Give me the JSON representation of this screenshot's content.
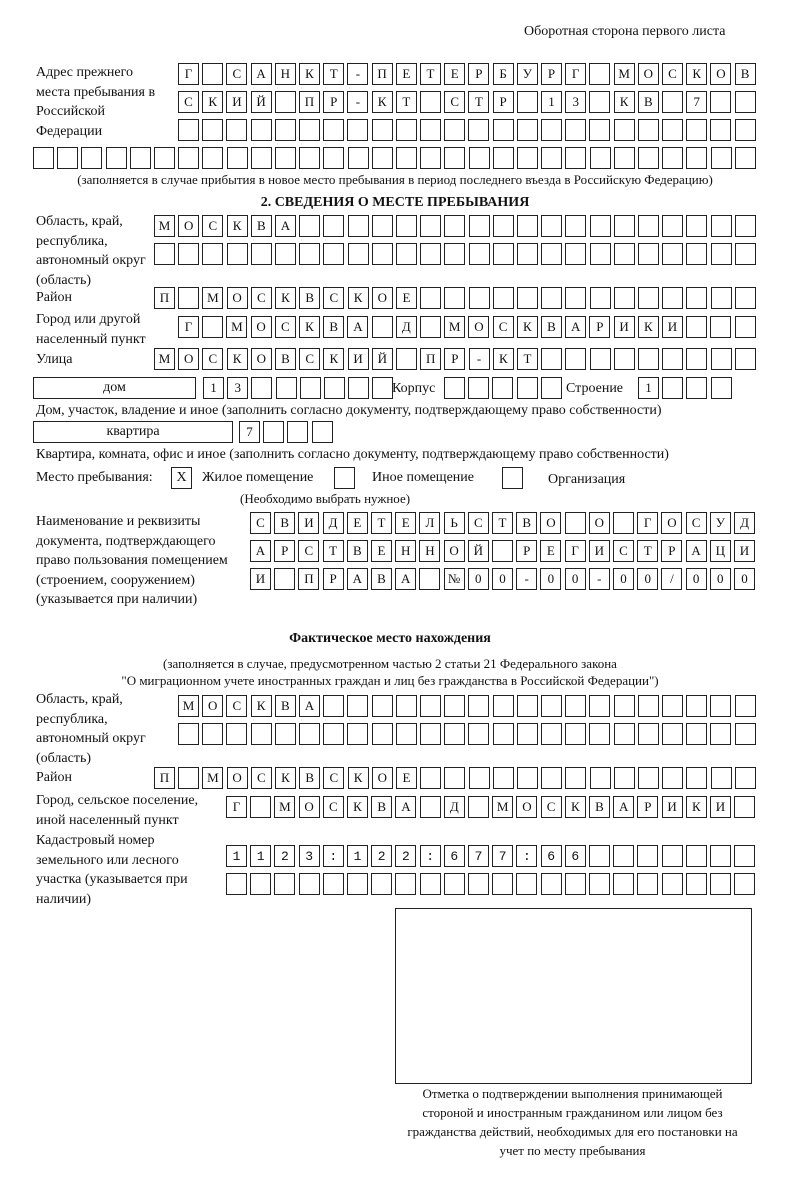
{
  "page_header": "Оборотная сторона первого листа",
  "prev_address": {
    "label": "Адрес прежнего места пребывания в Российской Федерации",
    "rows": [
      "Г САНКТ-ПЕТЕРБУРГ МОСКОВ",
      "СКИЙ ПР-КТ СТР 13 КВ 7  ",
      "                        ",
      "                              "
    ],
    "note": "(заполняется в случае прибытия в новое место пребывания в период последнего въезда в Российскую Федерацию)"
  },
  "section2": {
    "title": "2. СВЕДЕНИЯ О МЕСТЕ ПРЕБЫВАНИЯ",
    "region_label": "Область, край, республика, автономный округ (область)",
    "region_rows": [
      "МОСКВА                   ",
      "                         "
    ],
    "district_label": "Район",
    "district_row": "П МОСКВСКОЕ              ",
    "city_label": "Город или другой населенный пункт",
    "city_row": "Г МОСКВА Д МОСКВАРИКИ   ",
    "street_label": "Улица",
    "street_row": "МОСКОВСКИЙ ПР-КТ         ",
    "house_type": "дом",
    "house_row": "13      ",
    "korpus_label": "Корпус",
    "korpus_row": "     ",
    "building_label": "Строение",
    "building_row": "1   ",
    "house_note": "Дом, участок, владение и иное (заполнить согласно документу, подтверждающему право собственности)",
    "apt_type": "квартира",
    "apt_row": "7   ",
    "apt_note": "Квартира, комната, офис и иное (заполнить согласно документу, подтверждающему право собственности)",
    "stay_label": "Место пребывания:",
    "options": [
      {
        "label": "Жилое помещение",
        "mark": "X"
      },
      {
        "label": "Иное помещение",
        "mark": ""
      },
      {
        "label": "Организация",
        "mark": ""
      }
    ],
    "choose_note": "(Необходимо выбрать нужное)",
    "doc_label": "Наименование и реквизиты документа, подтверждающего право пользования помещением (строением, сооружением) (указывается при наличии)",
    "doc_rows": [
      "СВИДЕТЕЛЬСТВО О ГОСУД",
      "АРСТВЕННОЙ РЕГИСТРАЦИ",
      "И ПРАВА №00-00-00/000"
    ]
  },
  "actual": {
    "title": "Фактическое место нахождения",
    "note1": "(заполняется в случае, предусмотренном частью 2 статьи 21 Федерального закона",
    "note2": "\"О миграционном учете иностранных граждан и лиц без гражданства в Российской Федерации\")",
    "region_label": "Область, край, республика, автономный округ (область)",
    "region_rows": [
      "МОСКВА                  ",
      "                        "
    ],
    "district_label": "Район",
    "district_row": "П МОСКВСКОЕ              ",
    "city_label": "Город, сельское поселение, иной населенный пункт",
    "city_row": "Г МОСКВА Д МОСКВАРИКИ ",
    "cadastre_label": "Кадастровый номер земельного или лесного участка (указывается при наличии)",
    "cadastre_rows": [
      "1123:122:677:66       ",
      "                      "
    ]
  },
  "stamp_caption": "Отметка о подтверждении выполнения принимающей стороной и иностранным гражданином или лицом без гражданства действий, необходимых для его постановки на учет по месту пребывания"
}
